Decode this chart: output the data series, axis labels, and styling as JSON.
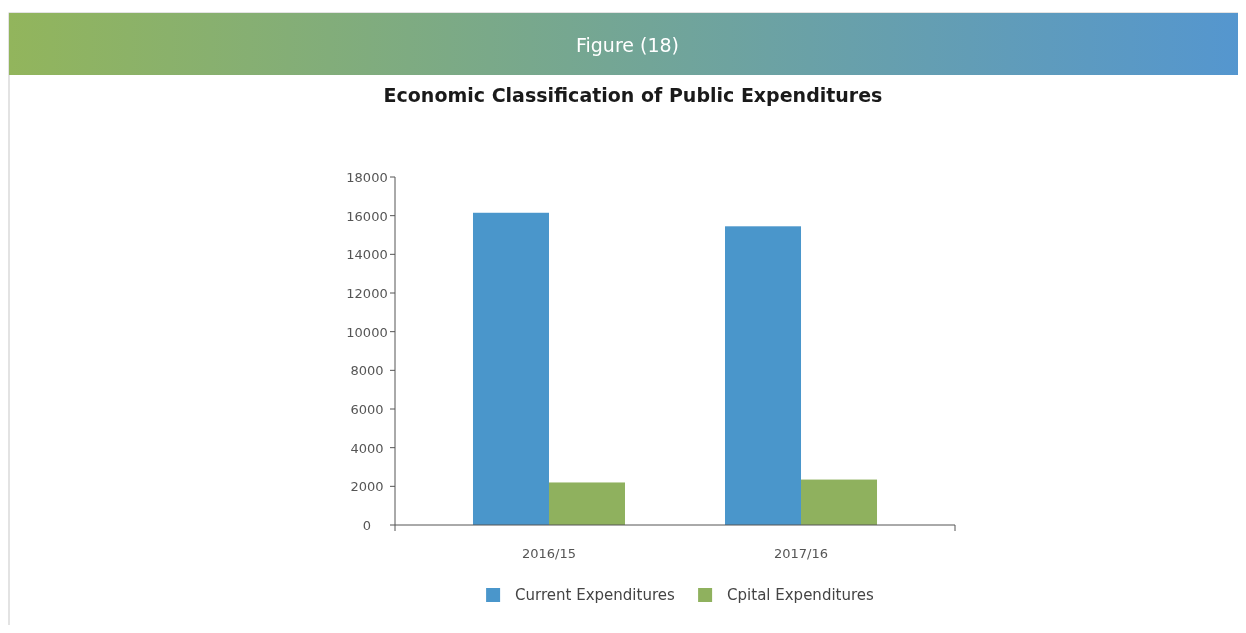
{
  "chart_data": {
    "type": "bar",
    "title": "Figure (18)",
    "subtitle": "Economic Classification of Public Expenditures",
    "categories": [
      "2016/15",
      "2017/16"
    ],
    "series": [
      {
        "name": "Current Expenditures",
        "color": "#4a96cb",
        "values": [
          16150,
          15450
        ]
      },
      {
        "name": "Cpital Expenditures",
        "color": "#8fb15e",
        "values": [
          2200,
          2350
        ]
      }
    ],
    "ylim": [
      0,
      18000
    ],
    "yticks": [
      0,
      2000,
      4000,
      6000,
      8000,
      10000,
      12000,
      14000,
      16000,
      18000
    ],
    "grid": false,
    "legend": "bottom"
  }
}
